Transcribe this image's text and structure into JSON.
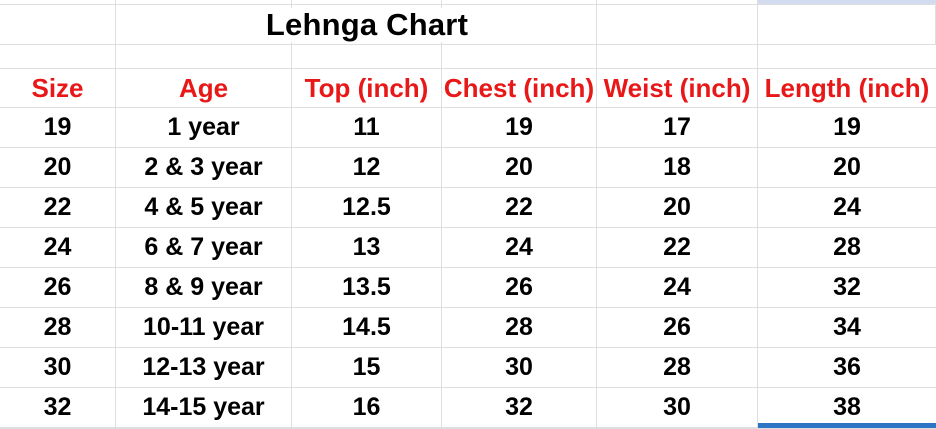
{
  "sheet": {
    "title": "Lehnga Chart",
    "header": {
      "columns": [
        "Size",
        "Age",
        "Top (inch)",
        "Chest (inch)",
        "Weist (inch)",
        "Length (inch)"
      ]
    },
    "rows": [
      [
        "19",
        "1 year",
        "11",
        "19",
        "17",
        "19"
      ],
      [
        "20",
        "2 & 3 year",
        "12",
        "20",
        "18",
        "20"
      ],
      [
        "22",
        "4 & 5 year",
        "12.5",
        "22",
        "20",
        "24"
      ],
      [
        "24",
        "6 & 7 year",
        "13",
        "24",
        "22",
        "28"
      ],
      [
        "26",
        "8 & 9 year",
        "13.5",
        "26",
        "24",
        "32"
      ],
      [
        "28",
        "10-11 year",
        "14.5",
        "28",
        "26",
        "34"
      ],
      [
        "30",
        "12-13 year",
        "15",
        "30",
        "28",
        "36"
      ],
      [
        "32",
        "14-15 year",
        "16",
        "32",
        "30",
        "38"
      ]
    ]
  },
  "chart_data": {
    "type": "table",
    "title": "Lehnga Chart",
    "columns": [
      "Size",
      "Age",
      "Top (inch)",
      "Chest (inch)",
      "Weist (inch)",
      "Length (inch)"
    ],
    "rows": [
      [
        "19",
        "1 year",
        "11",
        "19",
        "17",
        "19"
      ],
      [
        "20",
        "2 & 3 year",
        "12",
        "20",
        "18",
        "20"
      ],
      [
        "22",
        "4 & 5 year",
        "12.5",
        "22",
        "20",
        "24"
      ],
      [
        "24",
        "6 & 7 year",
        "13",
        "24",
        "22",
        "28"
      ],
      [
        "26",
        "8 & 9 year",
        "13.5",
        "26",
        "24",
        "32"
      ],
      [
        "28",
        "10-11 year",
        "14.5",
        "28",
        "26",
        "34"
      ],
      [
        "30",
        "12-13 year",
        "15",
        "30",
        "28",
        "36"
      ],
      [
        "32",
        "14-15 year",
        "16",
        "32",
        "30",
        "38"
      ]
    ]
  },
  "colors": {
    "background": "#ffffff",
    "body_text": "#000000",
    "header_text": "#e81818",
    "gridline": "#dcdee1",
    "highlight_fill": "#d3dcee",
    "selection_border": "#2d74c4"
  }
}
